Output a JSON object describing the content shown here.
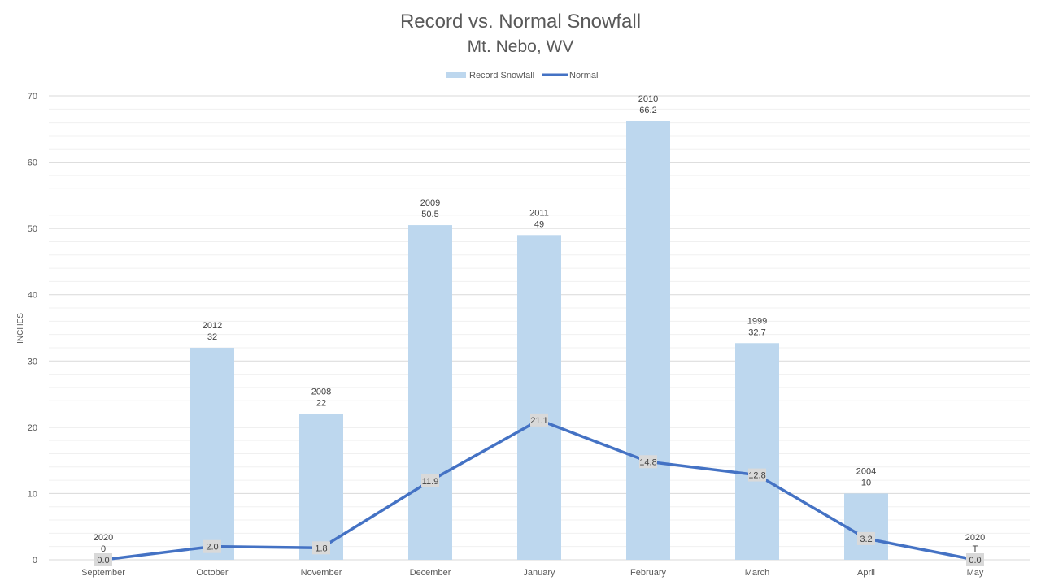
{
  "chart_data": {
    "type": "bar",
    "title": "Record vs. Normal Snowfall",
    "subtitle": "Mt. Nebo, WV",
    "ylabel": "INCHES",
    "xlabel": "",
    "ylim": [
      0,
      70
    ],
    "y_ticks": [
      0,
      10,
      20,
      30,
      40,
      50,
      60,
      70
    ],
    "grid": true,
    "legend_position": "top-center",
    "categories": [
      "September",
      "October",
      "November",
      "December",
      "January",
      "February",
      "March",
      "April",
      "May"
    ],
    "series": [
      {
        "name": "Record Snowfall",
        "type": "bar",
        "color": "#bdd7ee",
        "values": [
          0,
          32,
          22,
          50.5,
          49,
          66.2,
          32.7,
          10,
          0
        ],
        "value_labels": [
          "0",
          "32",
          "22",
          "50.5",
          "49",
          "66.2",
          "32.7",
          "10",
          "T"
        ],
        "years": [
          "2020",
          "2012",
          "2008",
          "2009",
          "2011",
          "2010",
          "1999",
          "2004",
          "2020"
        ]
      },
      {
        "name": "Normal",
        "type": "line",
        "color": "#4472c4",
        "values": [
          0.0,
          2.0,
          1.8,
          11.9,
          21.1,
          14.8,
          12.8,
          3.2,
          0.0
        ],
        "value_labels": [
          "0.0",
          "2.0",
          "1.8",
          "11.9",
          "21.1",
          "14.8",
          "12.8",
          "3.2",
          "0.0"
        ]
      }
    ]
  }
}
